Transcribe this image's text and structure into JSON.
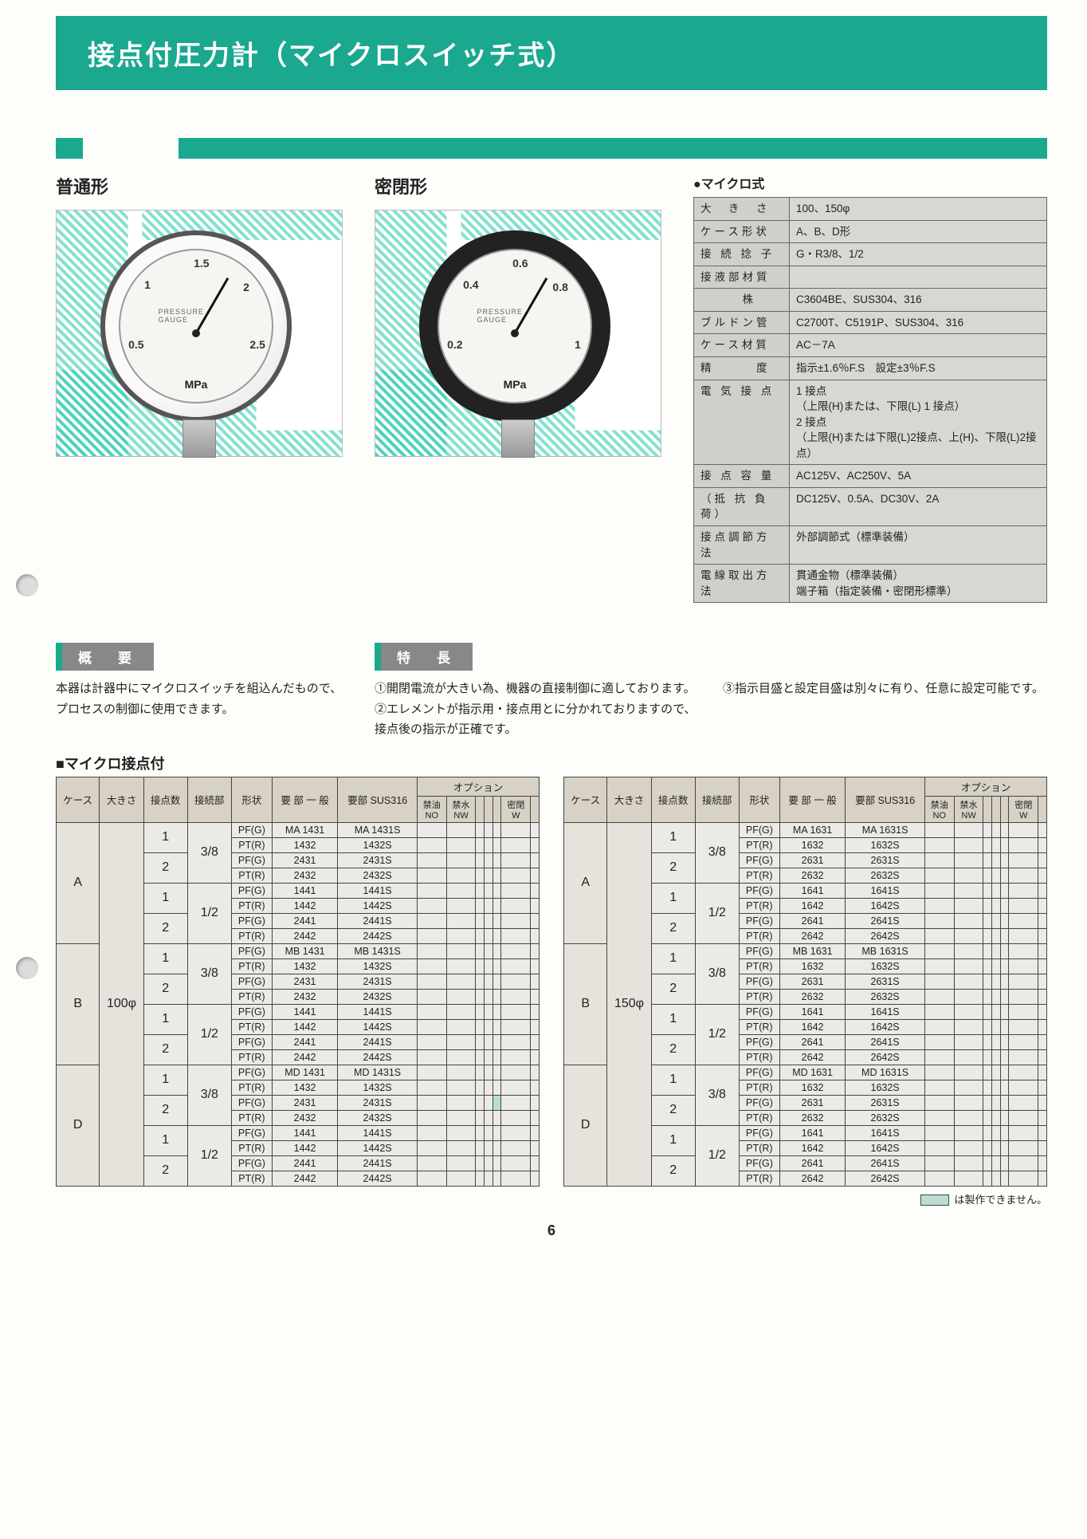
{
  "colors": {
    "accent": "#1aa88f",
    "grey": "#888888",
    "shade": "#baded4",
    "tablebg": "#eceae6"
  },
  "title": "接点付圧力計（マイクロスイッチ式）",
  "gauges": {
    "normal": {
      "label": "普通形",
      "unit": "MPa",
      "brand": "PRESSURE GAUGE",
      "ticks": [
        "0.5",
        "1",
        "1.5",
        "2",
        "2.5"
      ]
    },
    "sealed": {
      "label": "密閉形",
      "unit": "MPa",
      "brand": "PRESSURE GAUGE",
      "ticks": [
        "0.2",
        "0.4",
        "0.6",
        "0.8",
        "1"
      ]
    }
  },
  "spec": {
    "title": "●マイクロ式",
    "rows": [
      {
        "k": "大　き　さ",
        "v": "100、150φ"
      },
      {
        "k": "ケース形状",
        "v": "A、B、D形"
      },
      {
        "k": "接 続 捻 子",
        "v": "G・R3/8、1/2"
      },
      {
        "k": "接液部材質",
        "v": ""
      },
      {
        "k": "　　　株",
        "v": "C3604BE、SUS304、316"
      },
      {
        "k": "ブルドン管",
        "v": "C2700T、C5191P、SUS304、316"
      },
      {
        "k": "ケース材質",
        "v": "AC－7A"
      },
      {
        "k": "精　　　度",
        "v": "指示±1.6％F.S　設定±3％F.S"
      },
      {
        "k": "電 気 接 点",
        "v": "1 接点\n（上限(H)または、下限(L) 1 接点）\n2 接点\n（上限(H)または下限(L)2接点、上(H)、下限(L)2接点）"
      },
      {
        "k": "接 点 容 量",
        "v": "AC125V、AC250V、5A"
      },
      {
        "k": "（抵 抗 負 荷）",
        "v": "DC125V、0.5A、DC30V、2A"
      },
      {
        "k": "接点調節方法",
        "v": "外部調節式（標準装備）"
      },
      {
        "k": "電線取出方法",
        "v": "貫通金物（標準装備）\n端子箱（指定装備・密閉形標準）"
      }
    ]
  },
  "overview": {
    "head": "概　要",
    "body": "本器は計器中にマイクロスイッチを組込んだもので、プロセスの制御に使用できます。"
  },
  "features": {
    "head": "特　長",
    "items": [
      "①開閉電流が大きい為、機器の直接制御に適しております。",
      "②エレメントが指示用・接点用とに分かれておりますので、接点後の指示が正確です。",
      "③指示目盛と設定目盛は別々に有り、任意に設定可能です。"
    ]
  },
  "tableSection": {
    "title": "■マイクロ接点付",
    "headers": [
      "ケース",
      "大きさ",
      "接点数",
      "接続部",
      "形状",
      "要 部 一 般",
      "要部 SUS316"
    ],
    "optHeader": "オプション",
    "optSub": [
      "禁油\nNO",
      "禁水\nNW",
      "",
      "",
      "",
      "密閉\nW",
      ""
    ],
    "footnote": "は製作できません。"
  },
  "table1": {
    "size": "100φ",
    "groups": [
      {
        "case": "A",
        "blocks": [
          {
            "conn": "3/8",
            "rows": [
              [
                "1",
                "PF(G)",
                "MA 1431",
                "MA 1431S"
              ],
              [
                "",
                "PT(R)",
                "1432",
                "1432S"
              ],
              [
                "2",
                "PF(G)",
                "2431",
                "2431S"
              ],
              [
                "",
                "PT(R)",
                "2432",
                "2432S"
              ]
            ]
          },
          {
            "conn": "1/2",
            "rows": [
              [
                "1",
                "PF(G)",
                "1441",
                "1441S"
              ],
              [
                "",
                "PT(R)",
                "1442",
                "1442S"
              ],
              [
                "2",
                "PF(G)",
                "2441",
                "2441S"
              ],
              [
                "",
                "PT(R)",
                "2442",
                "2442S"
              ]
            ]
          }
        ]
      },
      {
        "case": "B",
        "blocks": [
          {
            "conn": "3/8",
            "rows": [
              [
                "1",
                "PF(G)",
                "MB 1431",
                "MB 1431S"
              ],
              [
                "",
                "PT(R)",
                "1432",
                "1432S"
              ],
              [
                "2",
                "PF(G)",
                "2431",
                "2431S"
              ],
              [
                "",
                "PT(R)",
                "2432",
                "2432S"
              ]
            ]
          },
          {
            "conn": "1/2",
            "rows": [
              [
                "1",
                "PF(G)",
                "1441",
                "1441S"
              ],
              [
                "",
                "PT(R)",
                "1442",
                "1442S"
              ],
              [
                "2",
                "PF(G)",
                "2441",
                "2441S"
              ],
              [
                "",
                "PT(R)",
                "2442",
                "2442S"
              ]
            ]
          }
        ]
      },
      {
        "case": "D",
        "blocks": [
          {
            "conn": "3/8",
            "rows": [
              [
                "1",
                "PF(G)",
                "MD 1431",
                "MD 1431S"
              ],
              [
                "",
                "PT(R)",
                "1432",
                "1432S"
              ],
              [
                "2",
                "PF(G)",
                "2431",
                "2431S",
                true
              ],
              [
                "",
                "PT(R)",
                "2432",
                "2432S"
              ]
            ]
          },
          {
            "conn": "1/2",
            "rows": [
              [
                "1",
                "PF(G)",
                "1441",
                "1441S"
              ],
              [
                "",
                "PT(R)",
                "1442",
                "1442S"
              ],
              [
                "2",
                "PF(G)",
                "2441",
                "2441S"
              ],
              [
                "",
                "PT(R)",
                "2442",
                "2442S"
              ]
            ]
          }
        ]
      }
    ]
  },
  "table2": {
    "size": "150φ",
    "groups": [
      {
        "case": "A",
        "blocks": [
          {
            "conn": "3/8",
            "rows": [
              [
                "1",
                "PF(G)",
                "MA 1631",
                "MA 1631S"
              ],
              [
                "",
                "PT(R)",
                "1632",
                "1632S"
              ],
              [
                "2",
                "PF(G)",
                "2631",
                "2631S"
              ],
              [
                "",
                "PT(R)",
                "2632",
                "2632S"
              ]
            ]
          },
          {
            "conn": "1/2",
            "rows": [
              [
                "1",
                "PF(G)",
                "1641",
                "1641S"
              ],
              [
                "",
                "PT(R)",
                "1642",
                "1642S"
              ],
              [
                "2",
                "PF(G)",
                "2641",
                "2641S"
              ],
              [
                "",
                "PT(R)",
                "2642",
                "2642S"
              ]
            ]
          }
        ]
      },
      {
        "case": "B",
        "blocks": [
          {
            "conn": "3/8",
            "rows": [
              [
                "1",
                "PF(G)",
                "MB 1631",
                "MB 1631S"
              ],
              [
                "",
                "PT(R)",
                "1632",
                "1632S"
              ],
              [
                "2",
                "PF(G)",
                "2631",
                "2631S"
              ],
              [
                "",
                "PT(R)",
                "2632",
                "2632S"
              ]
            ]
          },
          {
            "conn": "1/2",
            "rows": [
              [
                "1",
                "PF(G)",
                "1641",
                "1641S"
              ],
              [
                "",
                "PT(R)",
                "1642",
                "1642S"
              ],
              [
                "2",
                "PF(G)",
                "2641",
                "2641S"
              ],
              [
                "",
                "PT(R)",
                "2642",
                "2642S"
              ]
            ]
          }
        ]
      },
      {
        "case": "D",
        "blocks": [
          {
            "conn": "3/8",
            "rows": [
              [
                "1",
                "PF(G)",
                "MD 1631",
                "MD 1631S"
              ],
              [
                "",
                "PT(R)",
                "1632",
                "1632S"
              ],
              [
                "2",
                "PF(G)",
                "2631",
                "2631S"
              ],
              [
                "",
                "PT(R)",
                "2632",
                "2632S"
              ]
            ]
          },
          {
            "conn": "1/2",
            "rows": [
              [
                "1",
                "PF(G)",
                "1641",
                "1641S"
              ],
              [
                "",
                "PT(R)",
                "1642",
                "1642S"
              ],
              [
                "2",
                "PF(G)",
                "2641",
                "2641S"
              ],
              [
                "",
                "PT(R)",
                "2642",
                "2642S"
              ]
            ]
          }
        ]
      }
    ]
  },
  "pageNumber": "6"
}
